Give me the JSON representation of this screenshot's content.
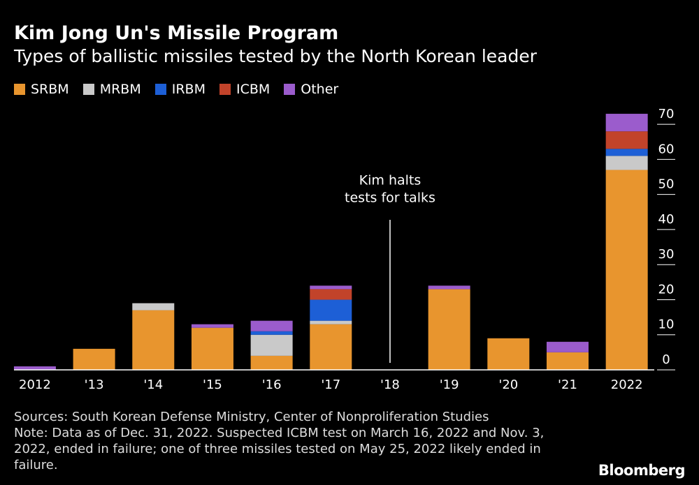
{
  "chart_data": {
    "type": "stacked_bar",
    "title": "Kim Jong Un's Missile Program",
    "subtitle": "Types of ballistic missiles tested by the North Korean leader",
    "categories": [
      "2012",
      "'13",
      "'14",
      "'15",
      "'16",
      "'17",
      "'18",
      "'19",
      "'20",
      "'21",
      "2022"
    ],
    "series": [
      {
        "name": "SRBM",
        "color": "#e8952e",
        "values": [
          0,
          6,
          17,
          12,
          4,
          13,
          0,
          23,
          9,
          5,
          57
        ]
      },
      {
        "name": "MRBM",
        "color": "#c9c9c9",
        "values": [
          0,
          0,
          2,
          0,
          6,
          1,
          0,
          0,
          0,
          0,
          4
        ]
      },
      {
        "name": "IRBM",
        "color": "#1d5fd6",
        "values": [
          0,
          0,
          0,
          0,
          1,
          6,
          0,
          0,
          0,
          0,
          2
        ]
      },
      {
        "name": "ICBM",
        "color": "#c2432a",
        "values": [
          0,
          0,
          0,
          0,
          0,
          3,
          0,
          0,
          0,
          0,
          5
        ]
      },
      {
        "name": "Other",
        "color": "#9b5ccc",
        "values": [
          1,
          0,
          0,
          1,
          3,
          1,
          0,
          1,
          0,
          3,
          5
        ]
      }
    ],
    "ylim": [
      0,
      75
    ],
    "yticks": [
      0,
      10,
      20,
      30,
      40,
      50,
      60,
      70
    ],
    "annotation": {
      "category": "'18",
      "lines": [
        "Kim halts",
        "tests for talks"
      ]
    },
    "source": "Sources: South Korean Defense Ministry, Center of Nonproliferation Studies",
    "note": "Note: Data as of Dec. 31, 2022. Suspected ICBM test on March 16, 2022 and Nov. 3, 2022, ended in failure; one of three missiles tested on May 25, 2022 likely ended in failure.",
    "brand": "Bloomberg"
  }
}
